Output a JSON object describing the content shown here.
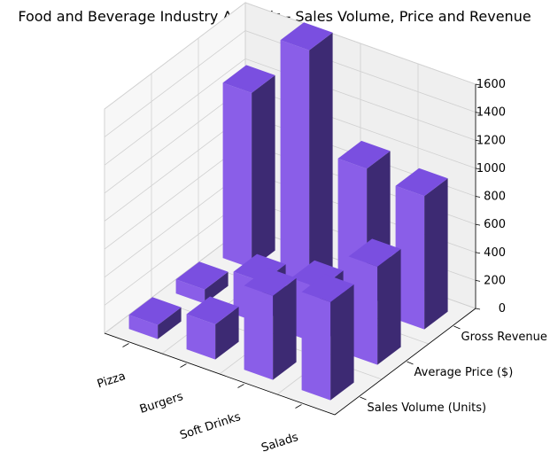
{
  "chart_data": {
    "type": "bar3d",
    "title": "Food and Beverage Industry Analysis - Sales Volume, Price and Revenue",
    "categories": [
      "Pizza",
      "Burgers",
      "Soft Drinks",
      "Salads"
    ],
    "series": [
      {
        "name": "Sales Volume (Units)",
        "values": [
          100,
          250,
          600,
          700
        ]
      },
      {
        "name": "Average Price ($)",
        "values": [
          100,
          300,
          400,
          700
        ]
      },
      {
        "name": "Gross Revenue ($)",
        "values": [
          1250,
          1700,
          1000,
          950
        ]
      }
    ],
    "zlim": [
      0,
      1600
    ],
    "zticks": [
      "0",
      "200",
      "400",
      "600",
      "800",
      "1000",
      "1200",
      "1400",
      "1600"
    ],
    "bar_colors": {
      "top": "#7a4fe0",
      "front": "#8a5ee8",
      "side": "#3d2a73"
    },
    "grid": true
  }
}
